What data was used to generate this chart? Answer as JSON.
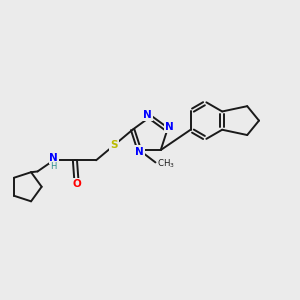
{
  "background_color": "#ebebeb",
  "bond_color": "#1a1a1a",
  "atom_colors": {
    "N": "#0000ff",
    "O": "#ff0000",
    "S": "#bbbb00",
    "H": "#2d8a8a",
    "C": "#1a1a1a"
  },
  "figsize": [
    3.0,
    3.0
  ],
  "dpi": 100
}
